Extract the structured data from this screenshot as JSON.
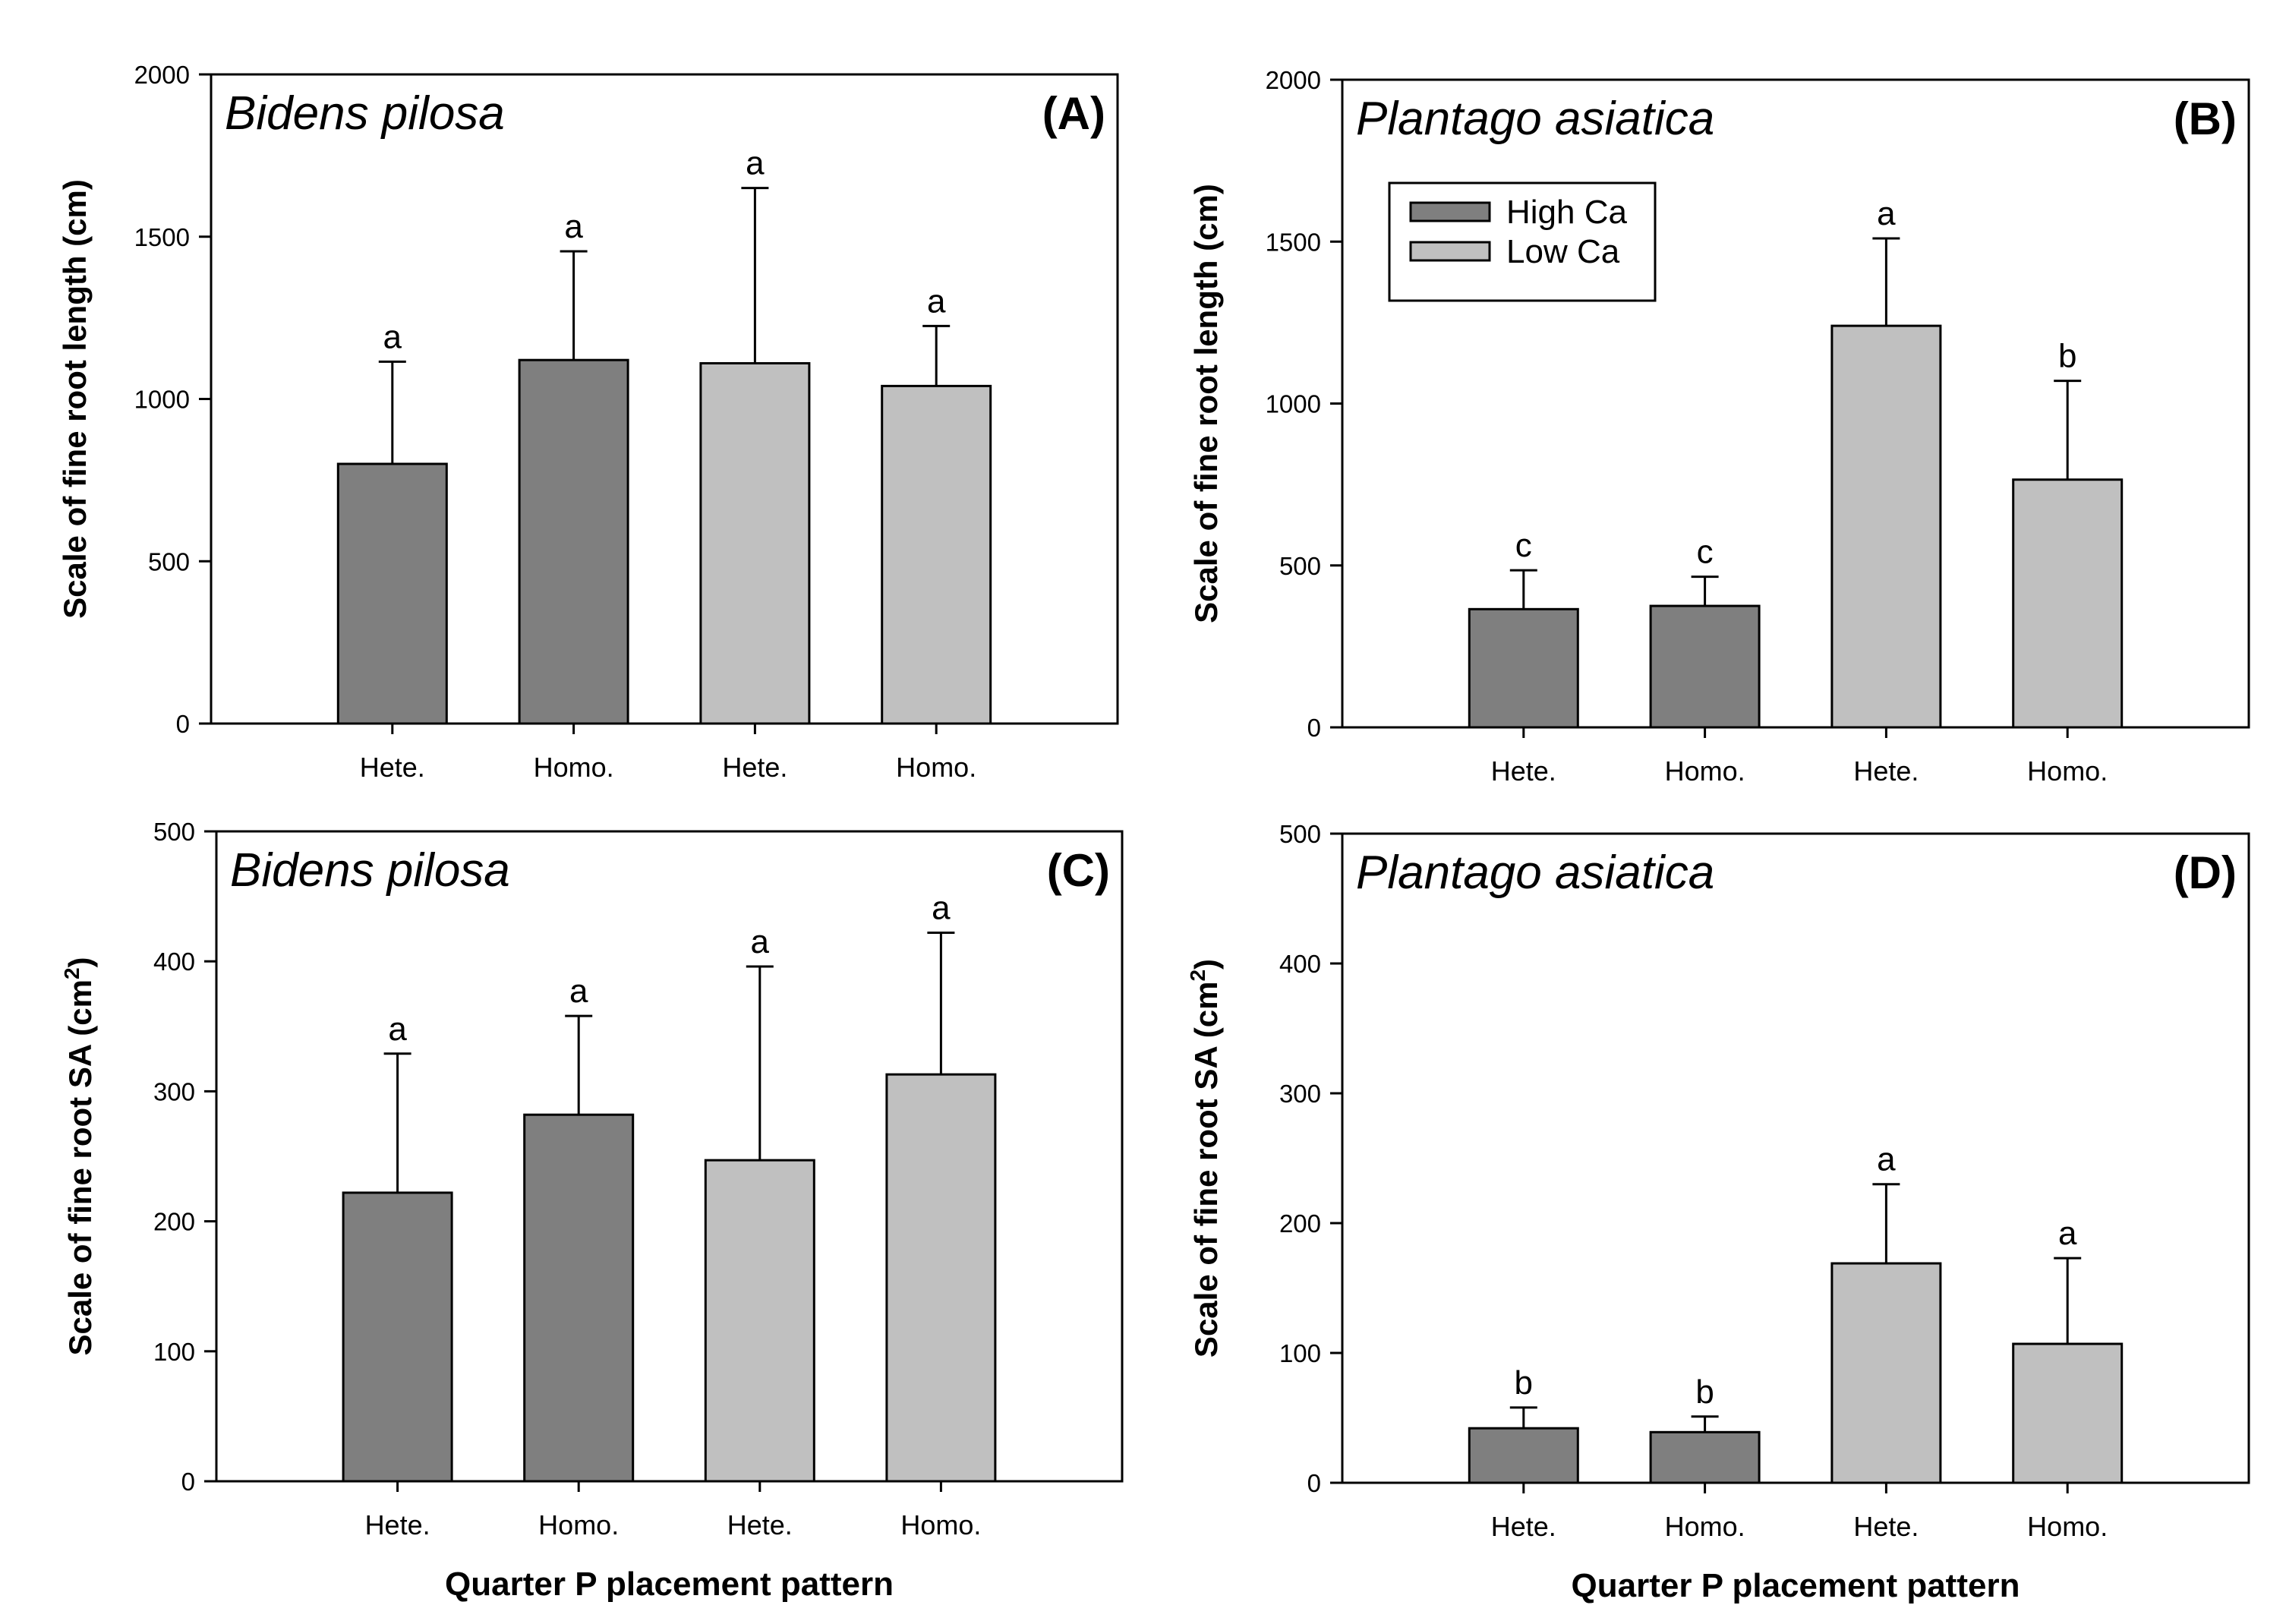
{
  "colors": {
    "high_ca": "#7f7f7f",
    "low_ca": "#c0c0c0",
    "stroke": "#000000"
  },
  "chart_data": [
    {
      "type": "bar",
      "panel": "(A)",
      "species": "Bidens pilosa",
      "ylabel": "Scale of fine root length (cm)",
      "xlabel": "",
      "ylim": [
        0,
        2000
      ],
      "yticks": [
        "0",
        "500",
        "1000",
        "1500",
        "2000"
      ],
      "yticks_values": [
        0,
        500,
        1000,
        1500,
        2000
      ],
      "categories": [
        "Hete.",
        "Homo.",
        "Hete.",
        "Homo."
      ],
      "groups": [
        "High Ca",
        "High Ca",
        "Low Ca",
        "Low Ca"
      ],
      "values": [
        800,
        1120,
        1110,
        1040
      ],
      "errors": [
        315,
        335,
        540,
        185
      ],
      "letters": [
        "a",
        "a",
        "a",
        "a"
      ],
      "grid": false
    },
    {
      "type": "bar",
      "panel": "(B)",
      "species": "Plantago asiatica",
      "ylabel": "Scale of fine root length (cm)",
      "xlabel": "",
      "ylim": [
        0,
        2000
      ],
      "yticks": [
        "0",
        "500",
        "1000",
        "1500",
        "2000"
      ],
      "yticks_values": [
        0,
        500,
        1000,
        1500,
        2000
      ],
      "categories": [
        "Hete.",
        "Homo.",
        "Hete.",
        "Homo."
      ],
      "groups": [
        "High Ca",
        "High Ca",
        "Low Ca",
        "Low Ca"
      ],
      "values": [
        365,
        375,
        1240,
        765
      ],
      "errors": [
        120,
        90,
        270,
        305
      ],
      "letters": [
        "c",
        "c",
        "a",
        "b"
      ],
      "legend": {
        "entries": [
          "High Ca",
          "Low Ca"
        ],
        "position": "top-left"
      },
      "grid": false
    },
    {
      "type": "bar",
      "panel": "(C)",
      "species": "Bidens pilosa",
      "ylabel": "Scale of fine root SA (cm",
      "ylabel_sup": "2",
      "ylabel_end": ")",
      "xlabel": "Quarter P placement pattern",
      "ylim": [
        0,
        500
      ],
      "yticks": [
        "0",
        "100",
        "200",
        "300",
        "400",
        "500"
      ],
      "yticks_values": [
        0,
        100,
        200,
        300,
        400,
        500
      ],
      "categories": [
        "Hete.",
        "Homo.",
        "Hete.",
        "Homo."
      ],
      "groups": [
        "High Ca",
        "High Ca",
        "Low Ca",
        "Low Ca"
      ],
      "values": [
        222,
        282,
        247,
        313
      ],
      "errors": [
        107,
        76,
        149,
        109
      ],
      "letters": [
        "a",
        "a",
        "a",
        "a"
      ],
      "grid": false
    },
    {
      "type": "bar",
      "panel": "(D)",
      "species": "Plantago asiatica",
      "ylabel": "Scale of fine root SA (cm",
      "ylabel_sup": "2",
      "ylabel_end": ")",
      "xlabel": "Quarter P placement pattern",
      "ylim": [
        0,
        500
      ],
      "yticks": [
        "0",
        "100",
        "200",
        "300",
        "400",
        "500"
      ],
      "yticks_values": [
        0,
        100,
        200,
        300,
        400,
        500
      ],
      "categories": [
        "Hete.",
        "Homo.",
        "Hete.",
        "Homo."
      ],
      "groups": [
        "High Ca",
        "High Ca",
        "Low Ca",
        "Low Ca"
      ],
      "values": [
        42,
        39,
        169,
        107
      ],
      "errors": [
        16,
        12,
        61,
        66
      ],
      "letters": [
        "b",
        "b",
        "a",
        "a"
      ],
      "grid": false
    }
  ]
}
